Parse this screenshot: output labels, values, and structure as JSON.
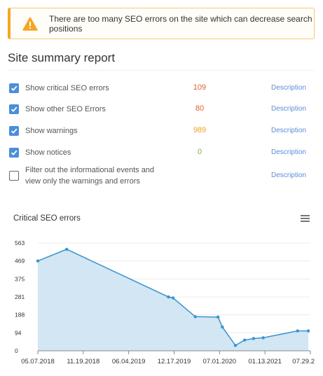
{
  "alert": {
    "message": "There are too many SEO errors on the site which can decrease search positions",
    "icon": "warning-triangle-icon",
    "accent_color": "#f5a623"
  },
  "summary": {
    "title": "Site summary report",
    "rows": [
      {
        "label": "Show critical SEO errors",
        "value": "109",
        "value_color": "#e0622a",
        "link": "Description",
        "checked": true
      },
      {
        "label": "Show other SEO Errors",
        "value": "80",
        "value_color": "#e0622a",
        "link": "Description",
        "checked": true
      },
      {
        "label": "Show warnings",
        "value": "989",
        "value_color": "#f0a020",
        "link": "Description",
        "checked": true
      },
      {
        "label": "Show notices",
        "value": "0",
        "value_color": "#7cb342",
        "link": "Description",
        "checked": true
      },
      {
        "label_line1": "Filter out the informational events and",
        "label_line2": "view only the warnings and errors",
        "link": "Description",
        "checked": false
      }
    ]
  },
  "chart_data": {
    "type": "area",
    "title": "Critical SEO errors",
    "menu_icon": "hamburger-menu-icon",
    "x_ticks": [
      "05.07.2018",
      "11.19.2018",
      "06.04.2019",
      "12.17.2019",
      "07.01.2020",
      "01.13.2021",
      "07.29.2"
    ],
    "y_ticks": [
      0,
      94,
      188,
      281,
      375,
      469,
      563
    ],
    "ylim": [
      0,
      563
    ],
    "xlim": [
      "2018-05-07",
      "2021-08-08"
    ],
    "series": [
      {
        "color": "#3a93cf",
        "fill": "#d2e6f3",
        "points": [
          {
            "x": "2018-05-07",
            "y": 469
          },
          {
            "x": "2018-09-10",
            "y": 530
          },
          {
            "x": "2019-11-28",
            "y": 281
          },
          {
            "x": "2019-12-18",
            "y": 276
          },
          {
            "x": "2020-03-24",
            "y": 178
          },
          {
            "x": "2020-07-01",
            "y": 176
          },
          {
            "x": "2020-07-20",
            "y": 124
          },
          {
            "x": "2020-09-15",
            "y": 28
          },
          {
            "x": "2020-10-25",
            "y": 56
          },
          {
            "x": "2020-12-03",
            "y": 64
          },
          {
            "x": "2021-01-14",
            "y": 68
          },
          {
            "x": "2021-06-13",
            "y": 104
          },
          {
            "x": "2021-07-30",
            "y": 104
          }
        ]
      }
    ]
  }
}
